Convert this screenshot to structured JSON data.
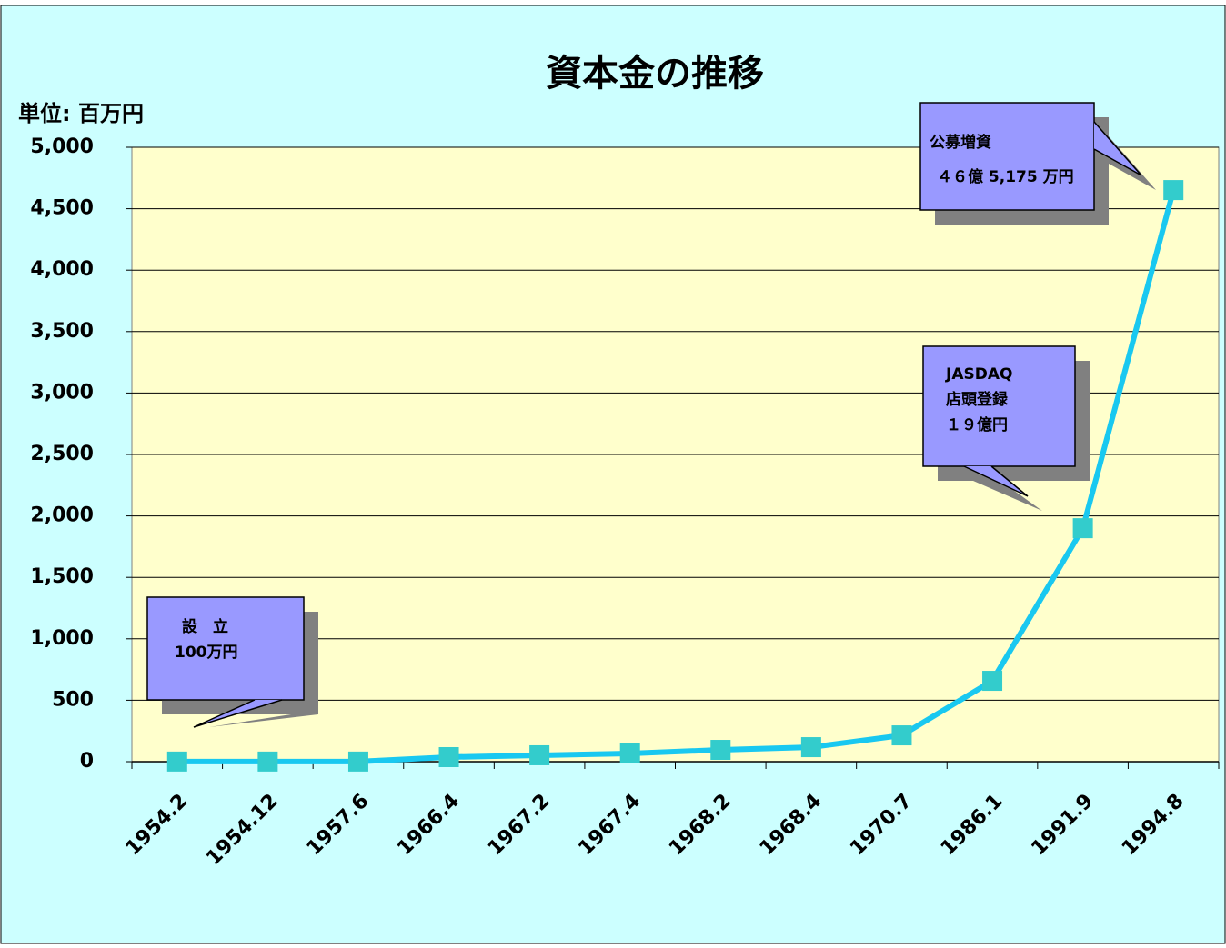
{
  "chart_data": {
    "type": "line",
    "title": "資本金の推移",
    "y_label": "単位: 百万円",
    "categories": [
      "1954.2",
      "1954.12",
      "1957.6",
      "1966.4",
      "1967.2",
      "1967.4",
      "1968.2",
      "1968.4",
      "1970.7",
      "1986.1",
      "1991.9",
      "1994.8"
    ],
    "series": [
      {
        "name": "資本金",
        "color": "#19c8f0",
        "marker_color": "#33cccc",
        "values": [
          1,
          1,
          1,
          37,
          52,
          67,
          96,
          118,
          214,
          658,
          1900,
          4651.75
        ]
      }
    ],
    "ylim": [
      0,
      5000
    ],
    "yticks": [
      0,
      500,
      {
        "value": 1000,
        "label": "1,000"
      },
      {
        "value": 1500,
        "label": "1,500"
      },
      {
        "value": 2000,
        "label": "2,000"
      },
      {
        "value": 2500,
        "label": "2,500"
      },
      {
        "value": 3000,
        "label": "3,000"
      },
      {
        "value": 3500,
        "label": "3,500"
      },
      {
        "value": 4000,
        "label": "4,000"
      },
      {
        "value": 4500,
        "label": "4,500"
      },
      {
        "value": 5000,
        "label": "5,000"
      }
    ],
    "grid": true,
    "annotations": [
      {
        "lines": [
          "設　立",
          "100万円"
        ]
      },
      {
        "lines": [
          "JASDAQ",
          "店頭登録",
          "１９億円"
        ]
      },
      {
        "lines": [
          "公募増資",
          "４６億 5,175 万円"
        ]
      }
    ]
  }
}
